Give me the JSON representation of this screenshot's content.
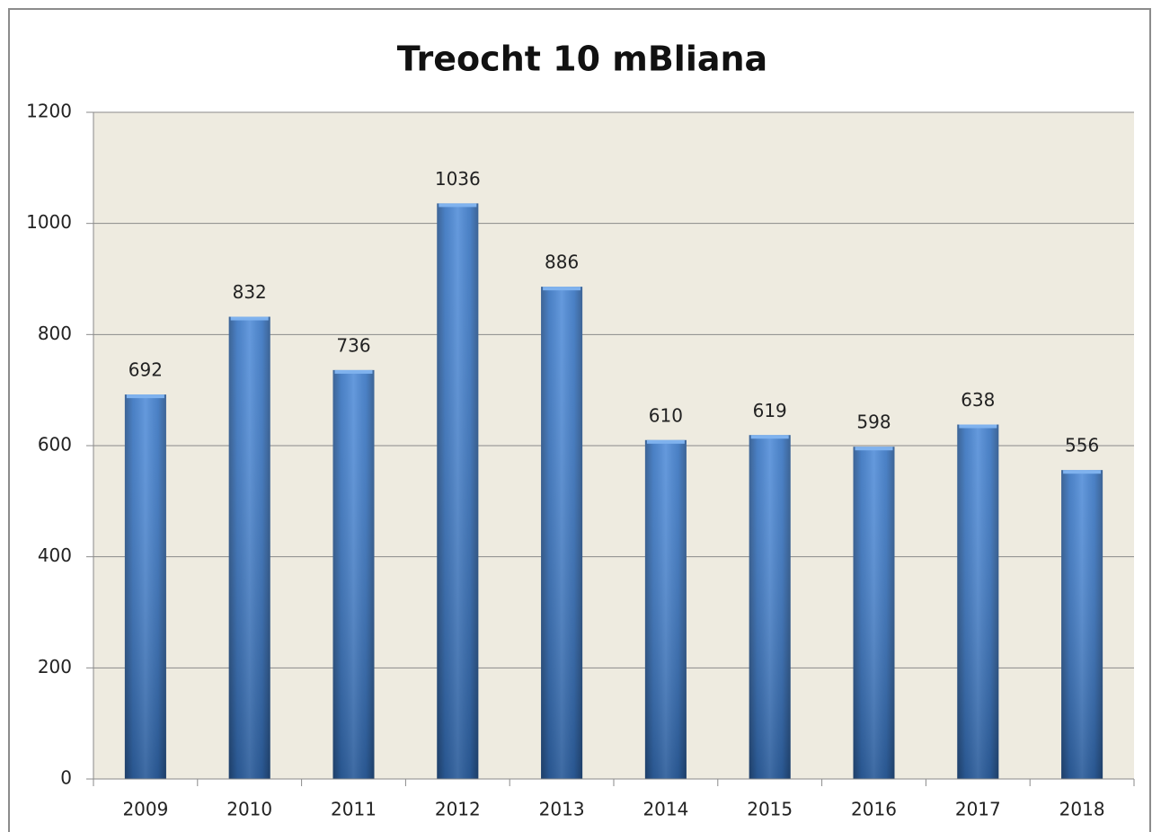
{
  "chart_data": {
    "type": "bar",
    "title": "Treocht 10 mBliana",
    "categories": [
      "2009",
      "2010",
      "2011",
      "2012",
      "2013",
      "2014",
      "2015",
      "2016",
      "2017",
      "2018"
    ],
    "values": [
      692,
      832,
      736,
      1036,
      886,
      610,
      619,
      598,
      638,
      556
    ],
    "color": "#3c7fd4",
    "ylim": [
      0,
      1200
    ],
    "yticks": [
      0,
      200,
      400,
      600,
      800,
      1000,
      1200
    ],
    "grid": true
  }
}
